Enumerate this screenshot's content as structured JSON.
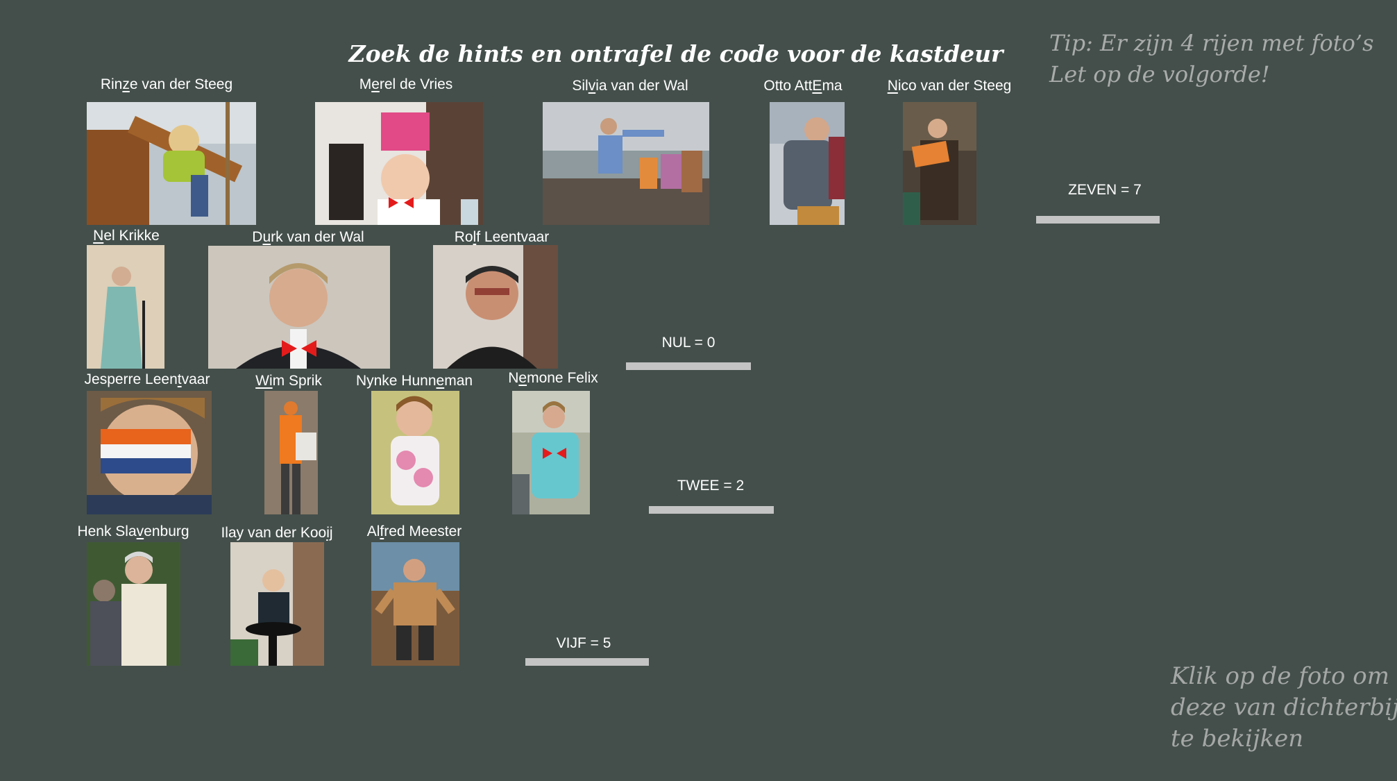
{
  "title": "Zoek de hints en ontrafel de code voor de kastdeur",
  "tip": {
    "line1": "Tip: Er zijn 4 rijen met foto’s",
    "line2": "Let op de volgorde!"
  },
  "click_hint": {
    "line1": "Klik op de foto om",
    "line2": "deze van dichterbij",
    "line3": "te bekijken"
  },
  "photos": {
    "rinze": {
      "pre": "Rin",
      "u": "z",
      "post": "e van der Steeg"
    },
    "merel": {
      "pre": "M",
      "u": "e",
      "post": "rel de Vries"
    },
    "silvia": {
      "pre": "Sil",
      "u": "v",
      "post": "ia van der Wal"
    },
    "otto": {
      "pre": "Otto Att",
      "u": "E",
      "post": "ma"
    },
    "nico": {
      "pre": "",
      "u": "N",
      "post": "ico van der Steeg"
    },
    "nel": {
      "pre": "",
      "u": "N",
      "post": "el Krikke"
    },
    "durk": {
      "pre": "D",
      "u": "u",
      "post": "rk van der Wal"
    },
    "rolf": {
      "pre": "Ro",
      "u": "l",
      "post": "f Leentvaar"
    },
    "jesperre": {
      "pre": "Jesperre Leen",
      "u": "t",
      "post": "vaar"
    },
    "wim": {
      "pre": "",
      "u": "Wi",
      "post": "m Sprik"
    },
    "nynke": {
      "pre": "Nynke Hunn",
      "u": "e",
      "post": "man"
    },
    "nemone": {
      "pre": "N",
      "u": "e",
      "post": "mone Felix"
    },
    "henk": {
      "pre": "Henk Sla",
      "u": "v",
      "post": "enburg"
    },
    "ilay": {
      "pre": "Ilay van der Koo",
      "u": "ij",
      "post": ""
    },
    "alfred": {
      "pre": "Al",
      "u": "f",
      "post": "red Meester"
    }
  },
  "codes": {
    "zeven": "ZEVEN = 7",
    "nul": "NUL = 0",
    "twee": "TWEE = 2",
    "vijf": "VIJF = 5"
  },
  "colors": {
    "background": "#444f4b",
    "answer_bar": "#c4c4c4",
    "tip_text": "#a9acaa"
  },
  "icons": [
    "photo-thumbnail"
  ]
}
